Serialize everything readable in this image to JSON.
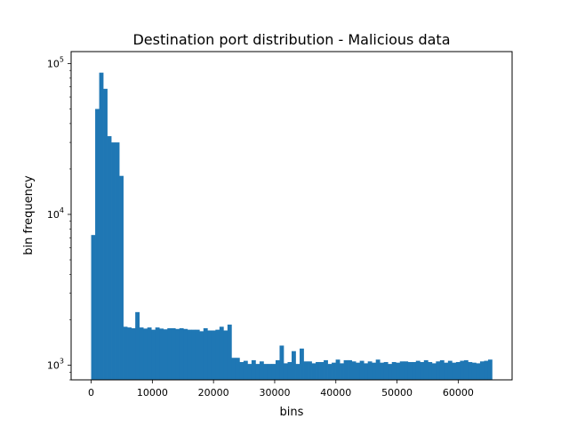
{
  "chart_data": {
    "type": "bar",
    "title": "Destination port distribution - Malicious data",
    "xlabel": "bins",
    "ylabel": "bin frequency",
    "xlim": [
      -3277,
      68812
    ],
    "ylim": [
      800,
      120000
    ],
    "yscale": "log",
    "grid": false,
    "color": "#1f77b4",
    "bin_start": 0,
    "bin_width": 655.35,
    "x_ticks": [
      {
        "value": 0,
        "label": "0"
      },
      {
        "value": 10000,
        "label": "10000"
      },
      {
        "value": 20000,
        "label": "20000"
      },
      {
        "value": 30000,
        "label": "30000"
      },
      {
        "value": 40000,
        "label": "40000"
      },
      {
        "value": 50000,
        "label": "50000"
      },
      {
        "value": 60000,
        "label": "60000"
      }
    ],
    "y_ticks": [
      {
        "value": 1000,
        "base": "10",
        "exp": "3"
      },
      {
        "value": 10000,
        "base": "10",
        "exp": "4"
      },
      {
        "value": 100000,
        "base": "10",
        "exp": "5"
      }
    ],
    "values": [
      7300,
      50000,
      87000,
      68000,
      33000,
      30000,
      30000,
      18000,
      1800,
      1780,
      1760,
      2250,
      1780,
      1750,
      1780,
      1720,
      1780,
      1750,
      1730,
      1760,
      1760,
      1740,
      1760,
      1740,
      1720,
      1720,
      1720,
      1680,
      1760,
      1700,
      1700,
      1720,
      1800,
      1700,
      1860,
      1120,
      1120,
      1050,
      1070,
      1020,
      1080,
      1020,
      1060,
      1020,
      1020,
      1020,
      1080,
      1350,
      1030,
      1050,
      1240,
      1020,
      1290,
      1060,
      1060,
      1030,
      1050,
      1050,
      1080,
      1020,
      1040,
      1090,
      1030,
      1080,
      1080,
      1060,
      1040,
      1070,
      1030,
      1060,
      1040,
      1090,
      1040,
      1050,
      1020,
      1050,
      1040,
      1060,
      1060,
      1050,
      1050,
      1070,
      1050,
      1080,
      1050,
      1030,
      1060,
      1080,
      1040,
      1070,
      1040,
      1050,
      1070,
      1080,
      1050,
      1040,
      1030,
      1060,
      1070,
      1090
    ]
  }
}
